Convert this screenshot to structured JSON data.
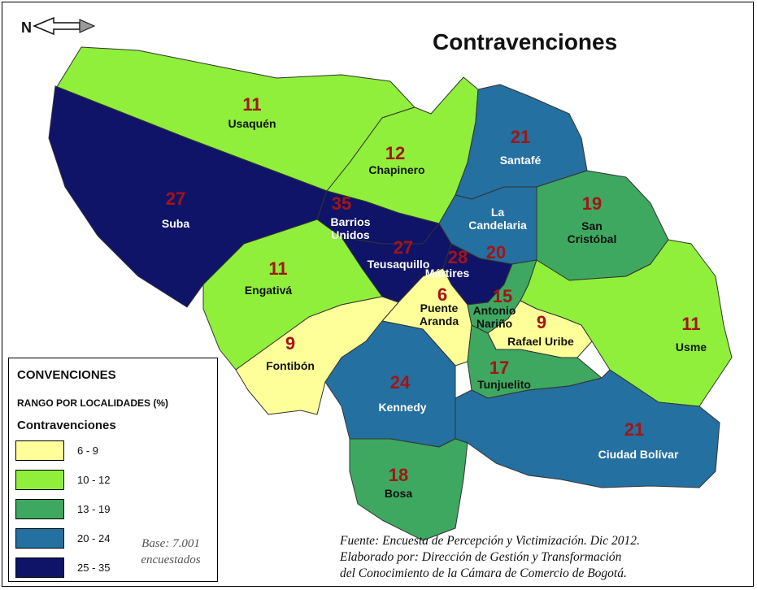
{
  "title": "Contravenciones",
  "legend": {
    "heading": "CONVENCIONES",
    "subheading": "RANGO POR LOCALIDADES (%)",
    "variable": "Contravenciones",
    "classes": [
      {
        "range": "6 - 9",
        "color": "#ffff99"
      },
      {
        "range": "10 - 12",
        "color": "#8fef3a"
      },
      {
        "range": "13 - 19",
        "color": "#3ea860"
      },
      {
        "range": "20 - 24",
        "color": "#2470a0"
      },
      {
        "range": "25 - 35",
        "color": "#0f1468"
      }
    ],
    "base_line1": "Base: 7.001",
    "base_line2": "encuestados"
  },
  "source": {
    "line1": "Fuente: Encuesta de Percepción y Victimización. Dic 2012.",
    "line2": "Elaborado por: Dirección de Gestión y Transformación",
    "line3": "del Conocimiento de la Cámara de Comercio de Bogotá."
  },
  "north_arrow": {
    "icon": "north-arrow-icon",
    "letter": "N"
  },
  "localidades": [
    {
      "name": "Usaquén",
      "value": "11"
    },
    {
      "name": "Chapinero",
      "value": "12"
    },
    {
      "name": "Santafé",
      "value": "21"
    },
    {
      "name": "La Candelaria",
      "value": "20"
    },
    {
      "name": "San Cristóbal",
      "value": "19"
    },
    {
      "name": "Suba",
      "value": "27"
    },
    {
      "name": "Barrios Unidos",
      "value": "35"
    },
    {
      "name": "Teusaquillo",
      "value": "27"
    },
    {
      "name": "Mártires",
      "value": "28"
    },
    {
      "name": "Engativá",
      "value": "11"
    },
    {
      "name": "Puente Aranda",
      "value": "6"
    },
    {
      "name": "Antonio Nariño",
      "value": "15"
    },
    {
      "name": "Rafael Uribe",
      "value": "9"
    },
    {
      "name": "Usme",
      "value": "11"
    },
    {
      "name": "Fontibón",
      "value": "9"
    },
    {
      "name": "Kennedy",
      "value": "24"
    },
    {
      "name": "Tunjuelito",
      "value": "17"
    },
    {
      "name": "Ciudad Bolívar",
      "value": "21"
    },
    {
      "name": "Bosa",
      "value": "18"
    }
  ]
}
